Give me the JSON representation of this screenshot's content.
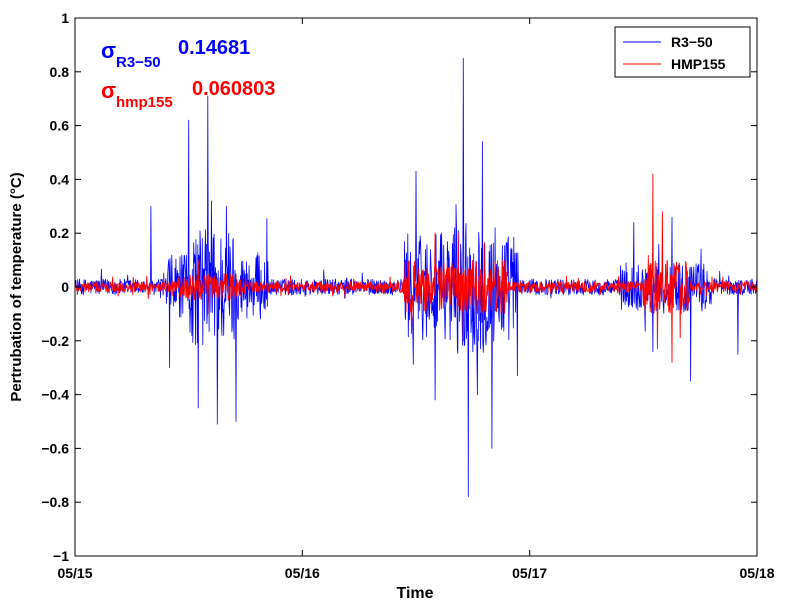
{
  "chart_data": {
    "type": "line",
    "xlabel": "Time",
    "ylabel": "Pertrubation of temperature (°C)",
    "x_ticks": [
      "05/15",
      "05/16",
      "05/17",
      "05/18"
    ],
    "y_ticks": [
      "1",
      "0.8",
      "0.6",
      "0.4",
      "0.2",
      "0",
      "−0.2",
      "−0.4",
      "−0.6",
      "−0.8",
      "−1"
    ],
    "xlim": [
      "05/15",
      "05/18"
    ],
    "ylim": [
      -1,
      1
    ],
    "grid": false,
    "legend_position": "top-right",
    "annotations": [
      {
        "symbol": "σ",
        "subscript": "R3−50",
        "value": "0.14681",
        "color": "#0000ff"
      },
      {
        "symbol": "σ",
        "subscript": "hmp155",
        "value": "0.060803",
        "color": "#ff0000"
      }
    ],
    "series": [
      {
        "name": "R3−50",
        "color": "#0000ff",
        "std": 0.14681,
        "key_points": [
          {
            "t": "05/15 00:00",
            "y": 0.0
          },
          {
            "t": "05/15 08:00",
            "y": 0.3
          },
          {
            "t": "05/15 10:00",
            "y": -0.3
          },
          {
            "t": "05/15 12:00",
            "y": 0.62
          },
          {
            "t": "05/15 13:00",
            "y": -0.45
          },
          {
            "t": "05/15 14:00",
            "y": 0.71
          },
          {
            "t": "05/15 15:00",
            "y": -0.51
          },
          {
            "t": "05/15 16:00",
            "y": 0.3
          },
          {
            "t": "05/15 17:00",
            "y": -0.5
          },
          {
            "t": "05/16 12:00",
            "y": 0.43
          },
          {
            "t": "05/16 14:00",
            "y": -0.42
          },
          {
            "t": "05/16 17:00",
            "y": 0.85
          },
          {
            "t": "05/16 17:30",
            "y": -0.78
          },
          {
            "t": "05/16 19:00",
            "y": 0.54
          },
          {
            "t": "05/16 20:00",
            "y": -0.6
          },
          {
            "t": "05/17 11:00",
            "y": 0.24
          },
          {
            "t": "05/17 13:00",
            "y": -0.24
          },
          {
            "t": "05/17 15:00",
            "y": 0.26
          },
          {
            "t": "05/17 17:00",
            "y": -0.35
          },
          {
            "t": "05/17 22:00",
            "y": -0.25
          },
          {
            "t": "05/18 00:00",
            "y": 0.0
          }
        ]
      },
      {
        "name": "HMP155",
        "color": "#ff0000",
        "std": 0.060803,
        "key_points": [
          {
            "t": "05/15 00:00",
            "y": 0.0
          },
          {
            "t": "05/15 13:00",
            "y": 0.1
          },
          {
            "t": "05/15 14:00",
            "y": -0.1
          },
          {
            "t": "05/16 14:00",
            "y": 0.2
          },
          {
            "t": "05/16 17:00",
            "y": -0.2
          },
          {
            "t": "05/17 13:00",
            "y": 0.42
          },
          {
            "t": "05/17 13:30",
            "y": -0.23
          },
          {
            "t": "05/17 14:00",
            "y": 0.28
          },
          {
            "t": "05/17 15:00",
            "y": -0.28
          },
          {
            "t": "05/18 00:00",
            "y": 0.0
          }
        ]
      }
    ]
  }
}
